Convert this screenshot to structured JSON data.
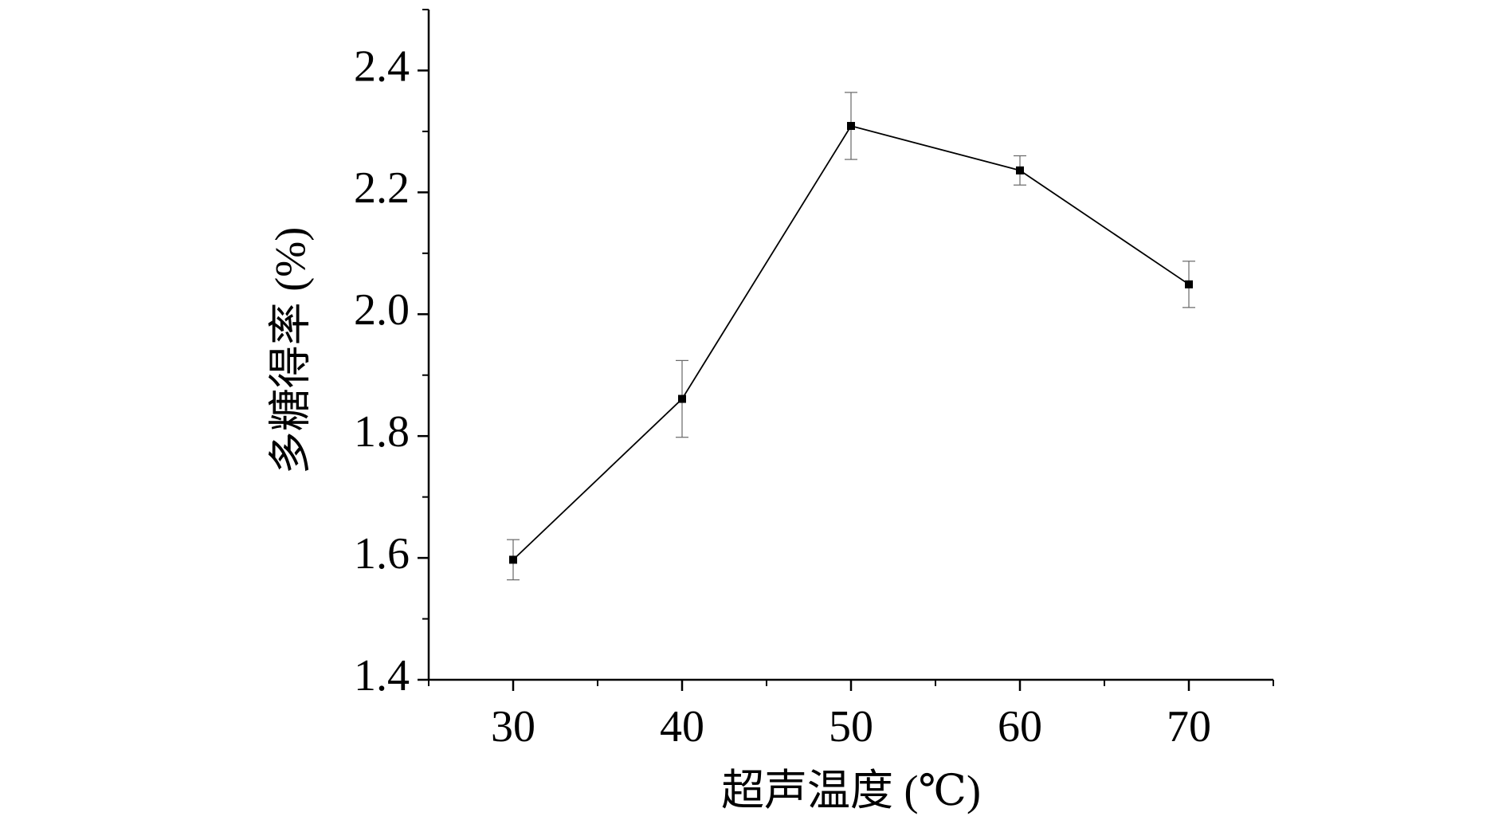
{
  "chart_data": {
    "type": "line",
    "x_label": "超声温度 (℃)",
    "y_label": "多糖得率 (%)",
    "x": [
      30,
      40,
      50,
      60,
      70
    ],
    "series": [
      {
        "color": "#000000",
        "values": [
          1.597,
          1.861,
          2.309,
          2.236,
          2.049
        ],
        "errors": [
          0.033,
          0.063,
          0.055,
          0.024,
          0.038
        ]
      }
    ],
    "xlim": [
      25,
      75
    ],
    "xticks": [
      30,
      40,
      50,
      60,
      70
    ],
    "ylim": [
      1.4,
      2.5
    ],
    "yticks": [
      {
        "value": 1.4,
        "label": "1.4"
      },
      {
        "value": 1.6,
        "label": "1.6"
      },
      {
        "value": 1.8,
        "label": "1.8"
      },
      {
        "value": 2.0,
        "label": "2.0"
      },
      {
        "value": 2.2,
        "label": "2.2"
      },
      {
        "value": 2.4,
        "label": "2.4"
      }
    ]
  }
}
